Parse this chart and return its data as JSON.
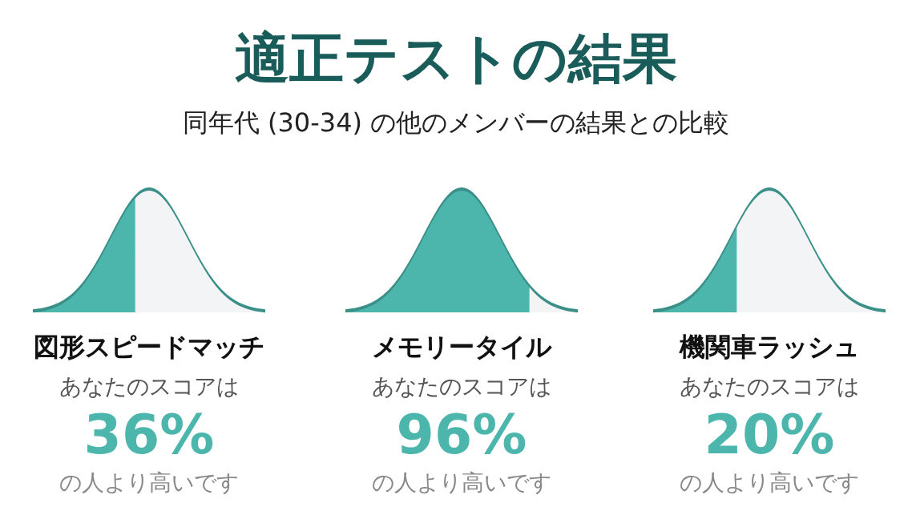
{
  "chart_data": [
    {
      "type": "other",
      "title": "適正テストの結果",
      "subtitle": "同年代 (30-34) の他のメンバーの結果との比較"
    },
    {
      "type": "other",
      "title": "図形スピードマッチ",
      "subtitle": "あなたのスコアは",
      "values": [
        36
      ],
      "value_labels": [
        "36%"
      ],
      "annotations": [
        "の人より高いです"
      ],
      "color": "#4db6ac"
    },
    {
      "type": "other",
      "title": "メモリータイル",
      "subtitle": "あなたのスコアは",
      "values": [
        96
      ],
      "value_labels": [
        "96%"
      ],
      "annotations": [
        "の人より高いです"
      ],
      "color": "#4db6ac"
    },
    {
      "type": "other",
      "title": "機関車ラッシュ",
      "subtitle": "あなたのスコアは",
      "values": [
        20
      ],
      "value_labels": [
        "20%"
      ],
      "annotations": [
        "の人より高いです"
      ],
      "color": "#4db6ac"
    }
  ]
}
